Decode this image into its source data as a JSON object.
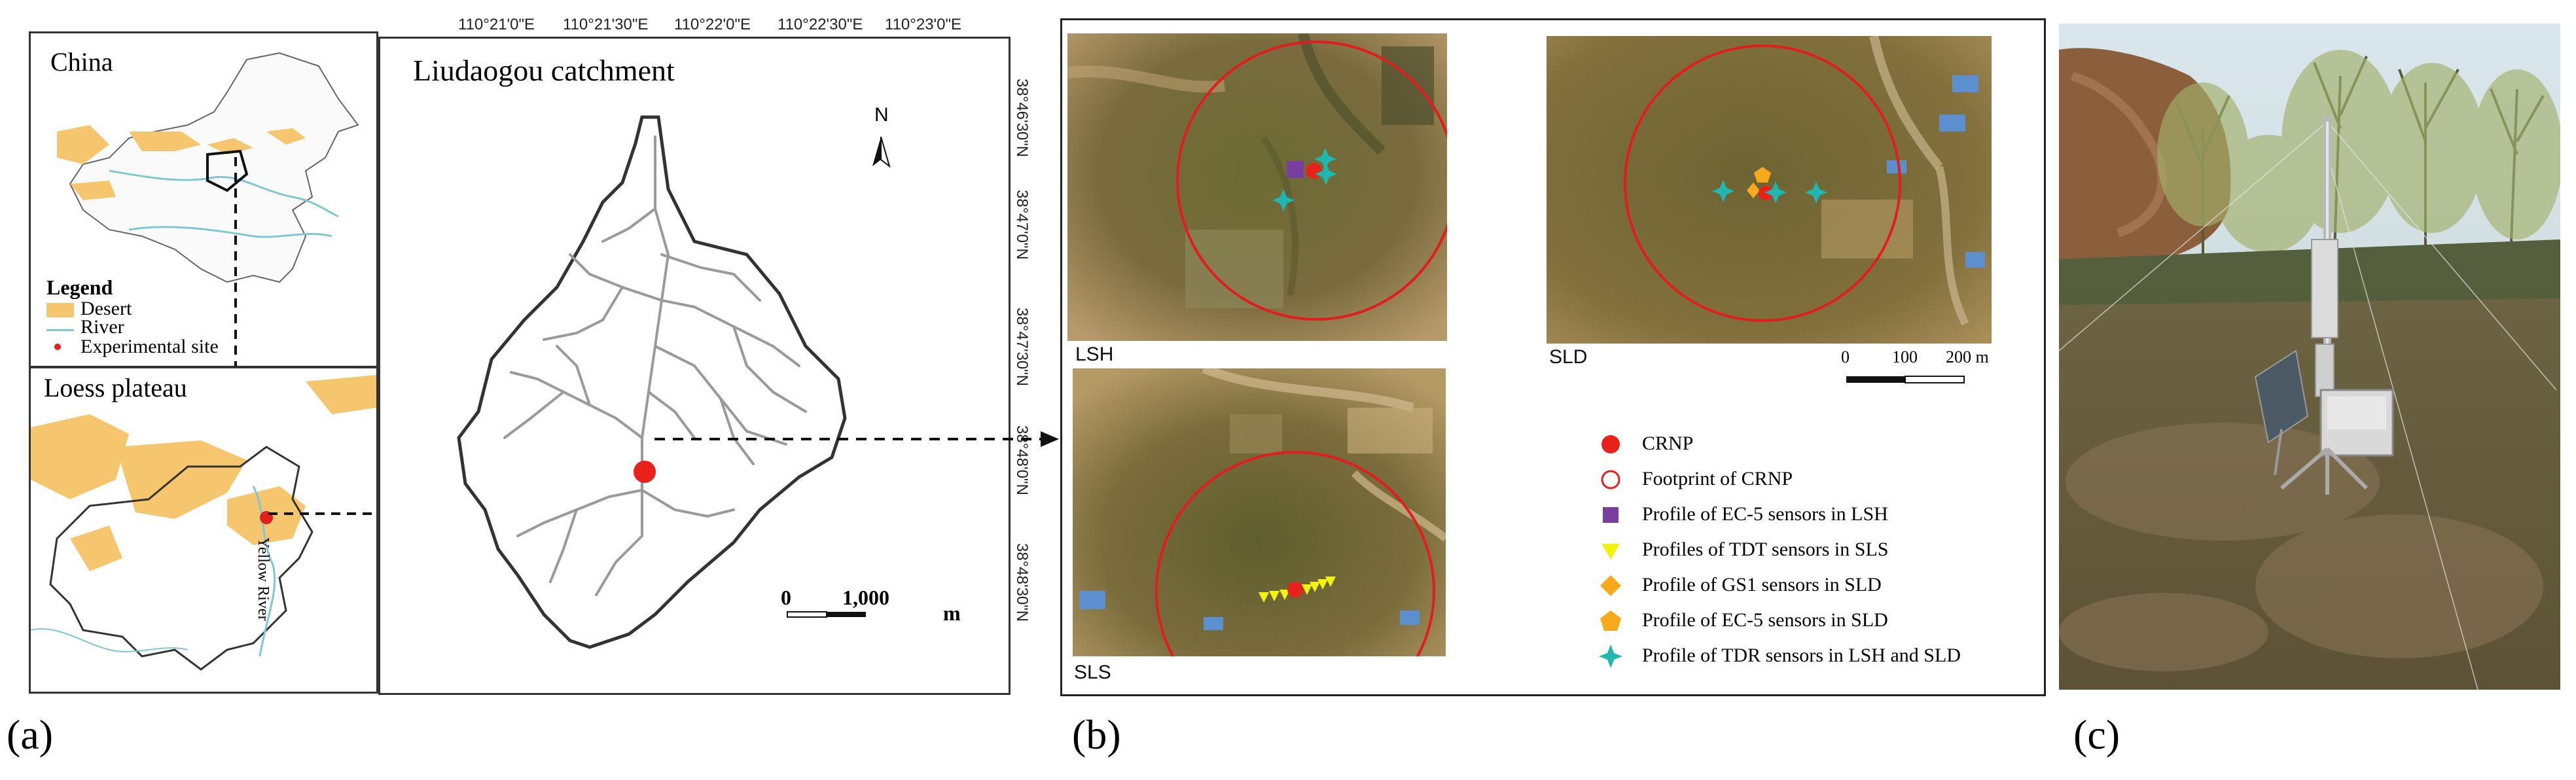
{
  "panel_a": {
    "letter": "(a)",
    "china_map": {
      "title": "China"
    },
    "legend": {
      "title": "Legend",
      "items": [
        {
          "label": "Desert",
          "color": "#f6c66e"
        },
        {
          "label": "River",
          "color": "#7fc7d6"
        },
        {
          "label": "Experimental site",
          "color": "#e0201b"
        }
      ]
    },
    "loess_map": {
      "title": "Loess plateau",
      "river_label": "Yellow River"
    },
    "catchment_map": {
      "title": "Liudaogou catchment",
      "north_label": "N",
      "scale_start": "0",
      "scale_end": "1,000",
      "scale_unit": "m",
      "top_ticks": [
        "110°21'0\"E",
        "110°21'30\"E",
        "110°22'0\"E",
        "110°22'30\"E",
        "110°23'0\"E"
      ],
      "right_ticks": [
        "38°46'30\"N",
        "38°47'0\"N",
        "38°47'30\"N",
        "38°48'0\"N",
        "38°48'30\"N"
      ]
    }
  },
  "panel_b": {
    "letter": "(b)",
    "sites": [
      {
        "label": "LSH"
      },
      {
        "label": "SLD"
      },
      {
        "label": "SLS"
      }
    ],
    "scale": {
      "start": "0",
      "mid": "100",
      "end": "200 m"
    },
    "legend": [
      {
        "label": "CRNP",
        "symbol": "filled-circle",
        "color": "#e8221b"
      },
      {
        "label": "Footprint of CRNP",
        "symbol": "open-circle",
        "color": "#e8221b"
      },
      {
        "label": "Profile of EC-5 sensors in LSH",
        "symbol": "square",
        "color": "#7a3ea0"
      },
      {
        "label": "Profiles of TDT sensors in SLS",
        "symbol": "triangle-down",
        "color": "#f2f20a"
      },
      {
        "label": "Profile of GS1 sensors in SLD",
        "symbol": "diamond",
        "color": "#f6a91b"
      },
      {
        "label": "Profile of EC-5 sensors in SLD",
        "symbol": "pentagon",
        "color": "#f6a91b"
      },
      {
        "label": "Profile of TDR sensors in LSH and SLD",
        "symbol": "star4",
        "color": "#1fb7b0"
      }
    ]
  },
  "panel_c": {
    "letter": "(c)"
  }
}
